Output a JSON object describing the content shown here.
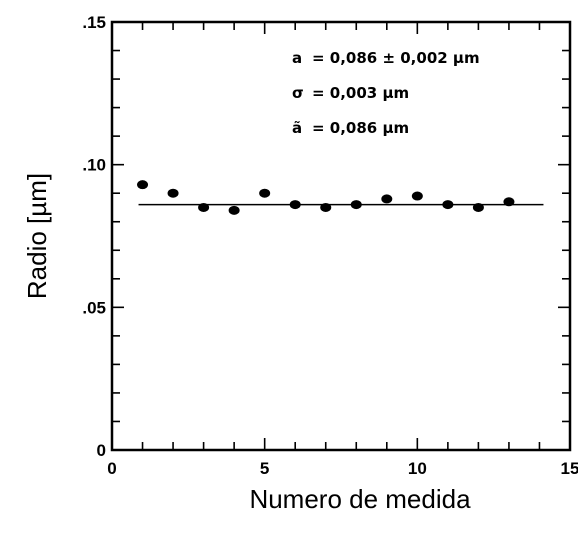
{
  "chart_data": {
    "type": "scatter",
    "xlabel": "Numero de medida",
    "ylabel": "Radio [µm]",
    "xlim": [
      0,
      15
    ],
    "ylim": [
      0,
      0.15
    ],
    "x_ticks": [
      0,
      5,
      10,
      15
    ],
    "x_tick_labels": [
      "0",
      "5",
      "10",
      "15"
    ],
    "y_ticks": [
      0,
      0.05,
      0.1,
      0.15
    ],
    "y_tick_labels": [
      "0",
      ".05",
      ".10",
      ".15"
    ],
    "grid": false,
    "series": [
      {
        "x": [
          1,
          2,
          3,
          4,
          5,
          6,
          7,
          8,
          9,
          10,
          11,
          12,
          13
        ],
        "y": [
          0.093,
          0.09,
          0.085,
          0.084,
          0.09,
          0.086,
          0.085,
          0.086,
          0.088,
          0.089,
          0.086,
          0.085,
          0.087
        ]
      }
    ],
    "reference_line": {
      "y": 0.086,
      "x_range": [
        1,
        14
      ]
    },
    "annotations": [
      {
        "symbol": "a",
        "text": "= 0,086 ± 0,002 µm"
      },
      {
        "symbol": "σ",
        "text": "= 0,003 µm"
      },
      {
        "symbol": "ã",
        "text": "= 0,086 µm"
      }
    ]
  }
}
